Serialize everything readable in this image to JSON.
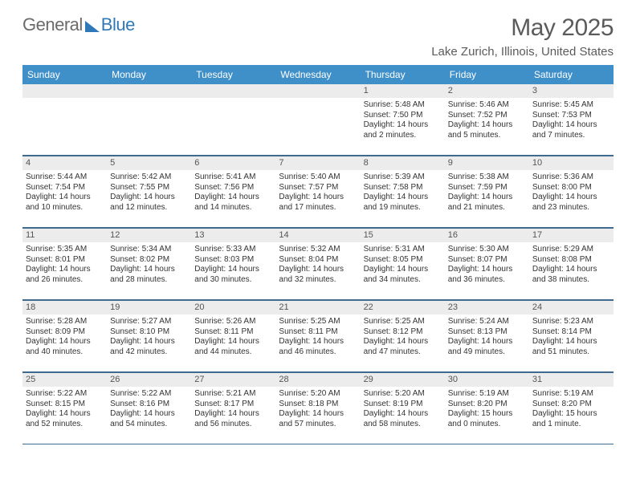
{
  "brand": {
    "part1": "General",
    "part2": "Blue"
  },
  "header": {
    "title": "May 2025",
    "location": "Lake Zurich, Illinois, United States"
  },
  "colors": {
    "header_bg": "#3f8fc9",
    "header_text": "#ffffff",
    "border": "#3f6a8f",
    "daynum_bg": "#ececec",
    "brand_gray": "#6b6b6b",
    "brand_blue": "#2f79b9",
    "text": "#333333",
    "title_gray": "#5b5b5b",
    "background": "#ffffff"
  },
  "typography": {
    "month_title_fontsize": 30,
    "location_fontsize": 15,
    "day_header_fontsize": 12,
    "daynum_fontsize": 11,
    "cell_fontsize": 10
  },
  "day_names": [
    "Sunday",
    "Monday",
    "Tuesday",
    "Wednesday",
    "Thursday",
    "Friday",
    "Saturday"
  ],
  "weeks": [
    [
      {
        "n": "",
        "sr": "",
        "ss": "",
        "dl": ""
      },
      {
        "n": "",
        "sr": "",
        "ss": "",
        "dl": ""
      },
      {
        "n": "",
        "sr": "",
        "ss": "",
        "dl": ""
      },
      {
        "n": "",
        "sr": "",
        "ss": "",
        "dl": ""
      },
      {
        "n": "1",
        "sr": "Sunrise: 5:48 AM",
        "ss": "Sunset: 7:50 PM",
        "dl": "Daylight: 14 hours and 2 minutes."
      },
      {
        "n": "2",
        "sr": "Sunrise: 5:46 AM",
        "ss": "Sunset: 7:52 PM",
        "dl": "Daylight: 14 hours and 5 minutes."
      },
      {
        "n": "3",
        "sr": "Sunrise: 5:45 AM",
        "ss": "Sunset: 7:53 PM",
        "dl": "Daylight: 14 hours and 7 minutes."
      }
    ],
    [
      {
        "n": "4",
        "sr": "Sunrise: 5:44 AM",
        "ss": "Sunset: 7:54 PM",
        "dl": "Daylight: 14 hours and 10 minutes."
      },
      {
        "n": "5",
        "sr": "Sunrise: 5:42 AM",
        "ss": "Sunset: 7:55 PM",
        "dl": "Daylight: 14 hours and 12 minutes."
      },
      {
        "n": "6",
        "sr": "Sunrise: 5:41 AM",
        "ss": "Sunset: 7:56 PM",
        "dl": "Daylight: 14 hours and 14 minutes."
      },
      {
        "n": "7",
        "sr": "Sunrise: 5:40 AM",
        "ss": "Sunset: 7:57 PM",
        "dl": "Daylight: 14 hours and 17 minutes."
      },
      {
        "n": "8",
        "sr": "Sunrise: 5:39 AM",
        "ss": "Sunset: 7:58 PM",
        "dl": "Daylight: 14 hours and 19 minutes."
      },
      {
        "n": "9",
        "sr": "Sunrise: 5:38 AM",
        "ss": "Sunset: 7:59 PM",
        "dl": "Daylight: 14 hours and 21 minutes."
      },
      {
        "n": "10",
        "sr": "Sunrise: 5:36 AM",
        "ss": "Sunset: 8:00 PM",
        "dl": "Daylight: 14 hours and 23 minutes."
      }
    ],
    [
      {
        "n": "11",
        "sr": "Sunrise: 5:35 AM",
        "ss": "Sunset: 8:01 PM",
        "dl": "Daylight: 14 hours and 26 minutes."
      },
      {
        "n": "12",
        "sr": "Sunrise: 5:34 AM",
        "ss": "Sunset: 8:02 PM",
        "dl": "Daylight: 14 hours and 28 minutes."
      },
      {
        "n": "13",
        "sr": "Sunrise: 5:33 AM",
        "ss": "Sunset: 8:03 PM",
        "dl": "Daylight: 14 hours and 30 minutes."
      },
      {
        "n": "14",
        "sr": "Sunrise: 5:32 AM",
        "ss": "Sunset: 8:04 PM",
        "dl": "Daylight: 14 hours and 32 minutes."
      },
      {
        "n": "15",
        "sr": "Sunrise: 5:31 AM",
        "ss": "Sunset: 8:05 PM",
        "dl": "Daylight: 14 hours and 34 minutes."
      },
      {
        "n": "16",
        "sr": "Sunrise: 5:30 AM",
        "ss": "Sunset: 8:07 PM",
        "dl": "Daylight: 14 hours and 36 minutes."
      },
      {
        "n": "17",
        "sr": "Sunrise: 5:29 AM",
        "ss": "Sunset: 8:08 PM",
        "dl": "Daylight: 14 hours and 38 minutes."
      }
    ],
    [
      {
        "n": "18",
        "sr": "Sunrise: 5:28 AM",
        "ss": "Sunset: 8:09 PM",
        "dl": "Daylight: 14 hours and 40 minutes."
      },
      {
        "n": "19",
        "sr": "Sunrise: 5:27 AM",
        "ss": "Sunset: 8:10 PM",
        "dl": "Daylight: 14 hours and 42 minutes."
      },
      {
        "n": "20",
        "sr": "Sunrise: 5:26 AM",
        "ss": "Sunset: 8:11 PM",
        "dl": "Daylight: 14 hours and 44 minutes."
      },
      {
        "n": "21",
        "sr": "Sunrise: 5:25 AM",
        "ss": "Sunset: 8:11 PM",
        "dl": "Daylight: 14 hours and 46 minutes."
      },
      {
        "n": "22",
        "sr": "Sunrise: 5:25 AM",
        "ss": "Sunset: 8:12 PM",
        "dl": "Daylight: 14 hours and 47 minutes."
      },
      {
        "n": "23",
        "sr": "Sunrise: 5:24 AM",
        "ss": "Sunset: 8:13 PM",
        "dl": "Daylight: 14 hours and 49 minutes."
      },
      {
        "n": "24",
        "sr": "Sunrise: 5:23 AM",
        "ss": "Sunset: 8:14 PM",
        "dl": "Daylight: 14 hours and 51 minutes."
      }
    ],
    [
      {
        "n": "25",
        "sr": "Sunrise: 5:22 AM",
        "ss": "Sunset: 8:15 PM",
        "dl": "Daylight: 14 hours and 52 minutes."
      },
      {
        "n": "26",
        "sr": "Sunrise: 5:22 AM",
        "ss": "Sunset: 8:16 PM",
        "dl": "Daylight: 14 hours and 54 minutes."
      },
      {
        "n": "27",
        "sr": "Sunrise: 5:21 AM",
        "ss": "Sunset: 8:17 PM",
        "dl": "Daylight: 14 hours and 56 minutes."
      },
      {
        "n": "28",
        "sr": "Sunrise: 5:20 AM",
        "ss": "Sunset: 8:18 PM",
        "dl": "Daylight: 14 hours and 57 minutes."
      },
      {
        "n": "29",
        "sr": "Sunrise: 5:20 AM",
        "ss": "Sunset: 8:19 PM",
        "dl": "Daylight: 14 hours and 58 minutes."
      },
      {
        "n": "30",
        "sr": "Sunrise: 5:19 AM",
        "ss": "Sunset: 8:20 PM",
        "dl": "Daylight: 15 hours and 0 minutes."
      },
      {
        "n": "31",
        "sr": "Sunrise: 5:19 AM",
        "ss": "Sunset: 8:20 PM",
        "dl": "Daylight: 15 hours and 1 minute."
      }
    ]
  ]
}
